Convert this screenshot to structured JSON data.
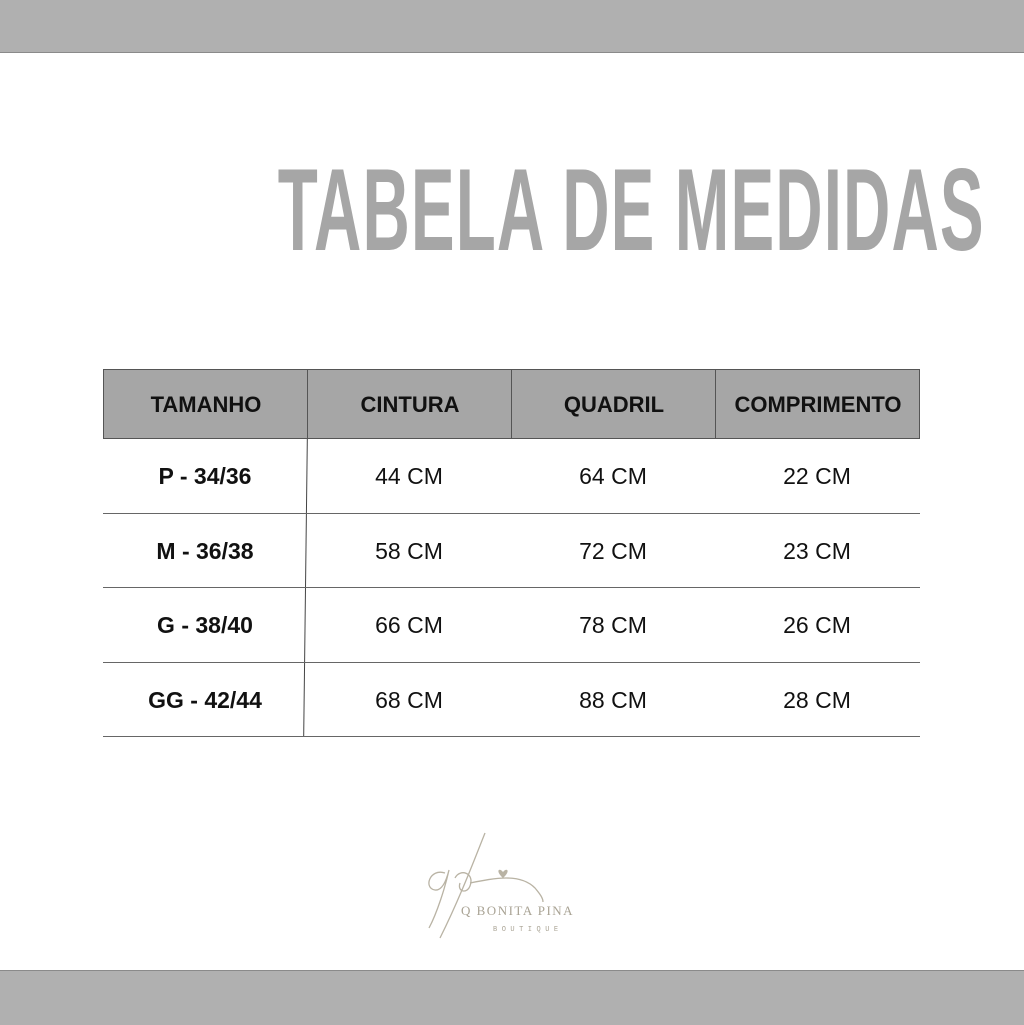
{
  "title": "TABELA DE MEDIDAS",
  "table": {
    "headers": [
      "TAMANHO",
      "CINTURA",
      "QUADRIL",
      "COMPRIMENTO"
    ],
    "rows": [
      [
        "P - 34/36",
        "44 CM",
        "64 CM",
        "22 CM"
      ],
      [
        "M - 36/38",
        "58 CM",
        "72 CM",
        "23 CM"
      ],
      [
        "G - 38/40",
        "66 CM",
        "78 CM",
        "26 CM"
      ],
      [
        "GG - 42/44",
        "68 CM",
        "88 CM",
        "28 CM"
      ]
    ]
  },
  "logo": {
    "monogram": "qb",
    "name": "Q BONITA PINA",
    "tagline": "BOUTIQUE"
  },
  "colors": {
    "bar": "#b0b0b0",
    "title": "#a6a6a6",
    "header_bg": "#a6a6a6",
    "logo": "#b9b3a4"
  }
}
